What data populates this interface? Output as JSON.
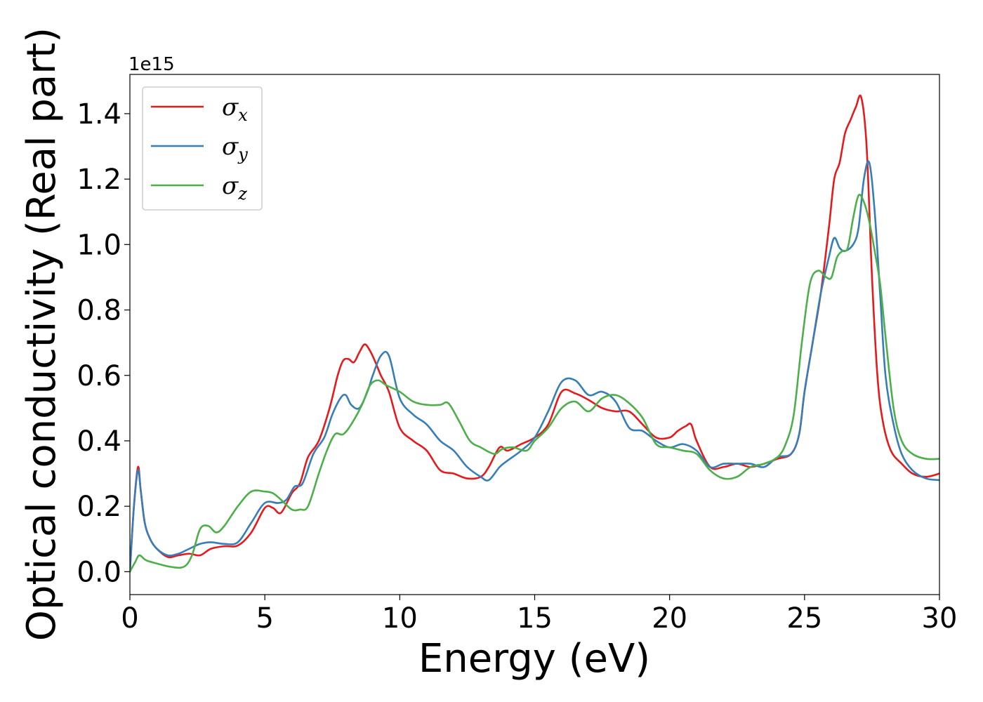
{
  "chart_data": {
    "type": "line",
    "title": "",
    "xlabel": "Energy (eV)",
    "ylabel": "Optical conductivity (Real part)",
    "y_offset_label": "1e15",
    "xlim": [
      0,
      30
    ],
    "ylim": [
      -0.07,
      1.52
    ],
    "xticks": [
      0,
      5,
      10,
      15,
      20,
      25,
      30
    ],
    "xtick_labels": [
      "0",
      "5",
      "10",
      "15",
      "20",
      "25",
      "30"
    ],
    "yticks": [
      0.0,
      0.2,
      0.4,
      0.6,
      0.8,
      1.0,
      1.2,
      1.4
    ],
    "ytick_labels": [
      "0.0",
      "0.2",
      "0.4",
      "0.6",
      "0.8",
      "1.0",
      "1.2",
      "1.4"
    ],
    "grid": false,
    "legend_position": "top-left",
    "series": [
      {
        "name": "σx",
        "legend_base": "σ",
        "legend_sub": "x",
        "color": "#e41a1c",
        "x": [
          0,
          0.15,
          0.3,
          0.4,
          0.55,
          0.75,
          1.0,
          1.4,
          1.8,
          2.2,
          2.6,
          3.0,
          3.5,
          4.0,
          4.5,
          5.0,
          5.3,
          5.6,
          6.0,
          6.3,
          6.6,
          7.0,
          7.4,
          7.7,
          7.9,
          8.1,
          8.3,
          8.5,
          8.7,
          8.9,
          9.1,
          9.3,
          9.6,
          10.0,
          10.5,
          11.0,
          11.5,
          12.0,
          12.5,
          13.0,
          13.3,
          13.7,
          14.0,
          14.5,
          15.0,
          15.5,
          16.0,
          16.5,
          17.0,
          17.5,
          18.0,
          18.5,
          19.0,
          19.5,
          20.0,
          20.3,
          20.6,
          20.8,
          21.0,
          21.5,
          22.0,
          22.5,
          23.0,
          23.5,
          24.0,
          24.5,
          24.8,
          25.0,
          25.3,
          25.6,
          25.9,
          26.1,
          26.3,
          26.5,
          26.7,
          26.9,
          27.1,
          27.3,
          27.5,
          27.7,
          27.9,
          28.2,
          28.6,
          29.0,
          29.5,
          30.0
        ],
        "y": [
          0.0,
          0.2,
          0.32,
          0.25,
          0.15,
          0.1,
          0.07,
          0.045,
          0.05,
          0.055,
          0.05,
          0.07,
          0.078,
          0.08,
          0.12,
          0.195,
          0.195,
          0.18,
          0.24,
          0.27,
          0.35,
          0.4,
          0.5,
          0.6,
          0.645,
          0.65,
          0.64,
          0.67,
          0.695,
          0.675,
          0.64,
          0.6,
          0.55,
          0.44,
          0.4,
          0.37,
          0.31,
          0.3,
          0.285,
          0.29,
          0.32,
          0.38,
          0.37,
          0.39,
          0.41,
          0.45,
          0.55,
          0.545,
          0.525,
          0.5,
          0.49,
          0.49,
          0.45,
          0.41,
          0.41,
          0.43,
          0.445,
          0.45,
          0.4,
          0.32,
          0.32,
          0.33,
          0.32,
          0.33,
          0.345,
          0.36,
          0.42,
          0.55,
          0.7,
          0.85,
          1.05,
          1.2,
          1.25,
          1.34,
          1.38,
          1.42,
          1.45,
          1.3,
          0.9,
          0.6,
          0.46,
          0.37,
          0.33,
          0.3,
          0.29,
          0.3
        ]
      },
      {
        "name": "σy",
        "legend_base": "σ",
        "legend_sub": "y",
        "color": "#377eb8",
        "x": [
          0,
          0.15,
          0.3,
          0.4,
          0.55,
          0.75,
          1.0,
          1.4,
          1.8,
          2.2,
          2.6,
          3.0,
          3.5,
          4.0,
          4.5,
          5.0,
          5.5,
          5.8,
          6.1,
          6.4,
          6.8,
          7.2,
          7.5,
          7.8,
          8.0,
          8.2,
          8.5,
          8.8,
          9.0,
          9.3,
          9.6,
          10.0,
          10.5,
          11.0,
          11.5,
          12.0,
          12.5,
          13.0,
          13.3,
          13.7,
          14.0,
          14.5,
          15.0,
          15.5,
          16.0,
          16.5,
          17.0,
          17.5,
          18.0,
          18.5,
          19.0,
          19.5,
          20.0,
          20.5,
          21.0,
          21.5,
          22.0,
          22.5,
          23.0,
          23.5,
          24.0,
          24.5,
          24.8,
          25.0,
          25.3,
          25.6,
          25.9,
          26.1,
          26.3,
          26.5,
          26.8,
          27.0,
          27.2,
          27.4,
          27.6,
          27.8,
          28.0,
          28.3,
          28.6,
          29.0,
          29.5,
          30.0
        ],
        "y": [
          0.0,
          0.2,
          0.31,
          0.25,
          0.15,
          0.1,
          0.07,
          0.05,
          0.055,
          0.07,
          0.085,
          0.09,
          0.085,
          0.09,
          0.15,
          0.21,
          0.21,
          0.22,
          0.26,
          0.27,
          0.36,
          0.41,
          0.48,
          0.53,
          0.54,
          0.51,
          0.5,
          0.55,
          0.6,
          0.66,
          0.66,
          0.53,
          0.48,
          0.45,
          0.4,
          0.37,
          0.32,
          0.29,
          0.28,
          0.32,
          0.34,
          0.37,
          0.41,
          0.49,
          0.58,
          0.585,
          0.54,
          0.55,
          0.52,
          0.44,
          0.43,
          0.4,
          0.38,
          0.39,
          0.37,
          0.32,
          0.33,
          0.33,
          0.33,
          0.32,
          0.35,
          0.36,
          0.42,
          0.55,
          0.7,
          0.85,
          0.96,
          1.02,
          0.99,
          0.98,
          1.0,
          1.05,
          1.2,
          1.25,
          1.1,
          0.85,
          0.6,
          0.45,
          0.36,
          0.31,
          0.285,
          0.28
        ]
      },
      {
        "name": "σz",
        "legend_base": "σ",
        "legend_sub": "z",
        "color": "#4daf4a",
        "x": [
          0,
          0.2,
          0.35,
          0.6,
          1.0,
          1.5,
          2.0,
          2.3,
          2.6,
          2.9,
          3.2,
          3.5,
          4.0,
          4.5,
          5.0,
          5.3,
          5.6,
          6.0,
          6.3,
          6.6,
          7.0,
          7.3,
          7.6,
          7.9,
          8.2,
          8.6,
          8.9,
          9.2,
          9.5,
          10.0,
          10.5,
          11.0,
          11.5,
          11.8,
          12.2,
          12.6,
          13.0,
          13.5,
          13.8,
          14.2,
          14.7,
          15.0,
          15.5,
          16.0,
          16.5,
          17.0,
          17.5,
          18.0,
          18.5,
          19.0,
          19.5,
          20.0,
          20.5,
          21.0,
          21.5,
          22.0,
          22.5,
          23.0,
          23.5,
          24.0,
          24.3,
          24.6,
          24.9,
          25.2,
          25.5,
          25.8,
          26.0,
          26.2,
          26.4,
          26.6,
          26.8,
          27.0,
          27.2,
          27.4,
          27.6,
          27.8,
          28.0,
          28.3,
          28.6,
          29.0,
          29.5,
          30.0
        ],
        "y": [
          0.0,
          0.03,
          0.05,
          0.035,
          0.025,
          0.015,
          0.015,
          0.05,
          0.13,
          0.14,
          0.12,
          0.14,
          0.2,
          0.245,
          0.245,
          0.24,
          0.22,
          0.19,
          0.19,
          0.2,
          0.3,
          0.37,
          0.42,
          0.42,
          0.45,
          0.51,
          0.57,
          0.585,
          0.57,
          0.55,
          0.52,
          0.51,
          0.51,
          0.515,
          0.46,
          0.4,
          0.38,
          0.36,
          0.375,
          0.38,
          0.37,
          0.4,
          0.44,
          0.5,
          0.52,
          0.49,
          0.53,
          0.54,
          0.515,
          0.47,
          0.39,
          0.38,
          0.37,
          0.36,
          0.31,
          0.285,
          0.29,
          0.32,
          0.33,
          0.35,
          0.39,
          0.48,
          0.7,
          0.88,
          0.92,
          0.9,
          0.9,
          0.96,
          0.98,
          0.99,
          1.08,
          1.15,
          1.13,
          1.07,
          0.98,
          0.88,
          0.72,
          0.5,
          0.4,
          0.36,
          0.345,
          0.345
        ]
      }
    ]
  }
}
